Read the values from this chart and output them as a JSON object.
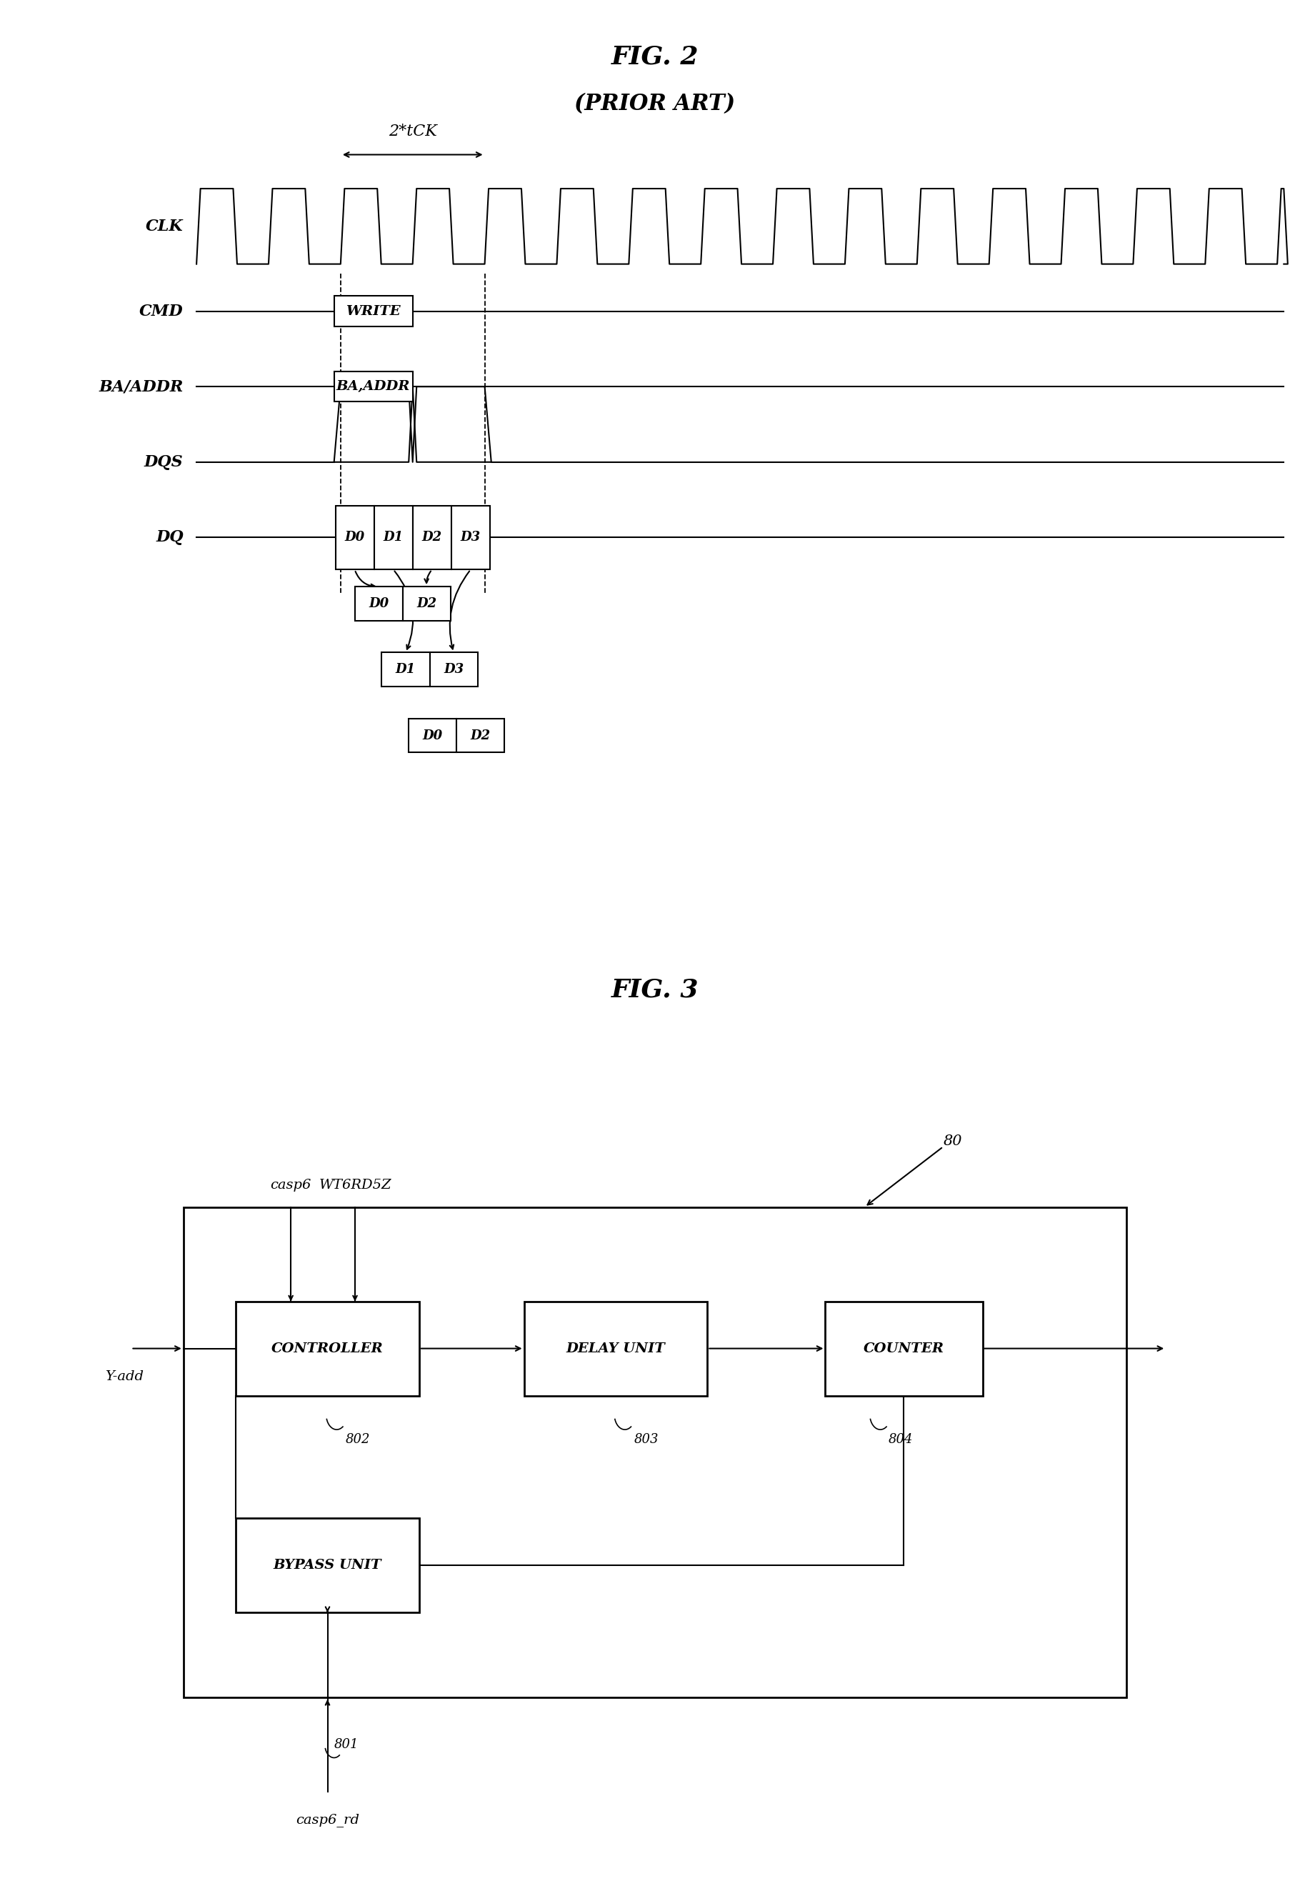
{
  "fig2_title": "FIG. 2",
  "fig2_subtitle": "(PRIOR ART)",
  "fig3_title": "FIG. 3",
  "bg_color": "#ffffff",
  "line_color": "#000000",
  "annotation_2tck": "2*tCK",
  "cmd_label": "WRITE",
  "addr_label": "BA,ADDR",
  "dq_labels_row0": [
    "D0",
    "D1",
    "D2",
    "D3"
  ],
  "dq_labels_row1": [
    "D0",
    "D2"
  ],
  "dq_labels_row2": [
    "D1",
    "D3"
  ],
  "dq_labels_row3": [
    "D0",
    "D2"
  ],
  "fig3_blocks": [
    "CONTROLLER",
    "DELAY UNIT",
    "COUNTER",
    "BYPASS UNIT"
  ],
  "fig3_signal_labels": [
    "casp6",
    "WT6RD5Z",
    "80",
    "802",
    "803",
    "804",
    "Y-add",
    "801",
    "casp6_rd"
  ]
}
